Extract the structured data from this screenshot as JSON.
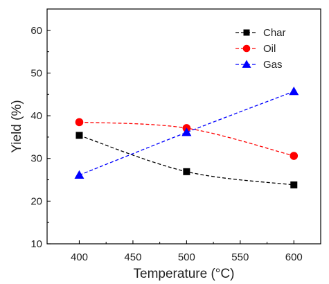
{
  "chart_data": {
    "type": "line",
    "xlabel": "Temperature (°C)",
    "ylabel": "Yield (%)",
    "xlim": [
      370,
      625
    ],
    "ylim": [
      10,
      65
    ],
    "x_ticks": [
      400,
      450,
      500,
      550,
      600
    ],
    "y_ticks": [
      10,
      20,
      30,
      40,
      50,
      60
    ],
    "grid": false,
    "legend_position": "top-right",
    "x": [
      400,
      500,
      600
    ],
    "series": [
      {
        "name": "Char",
        "values": [
          35.4,
          26.9,
          23.8
        ],
        "color": "#000000",
        "marker": "square"
      },
      {
        "name": "Oil",
        "values": [
          38.5,
          37.1,
          30.6
        ],
        "color": "#ff0000",
        "marker": "circle"
      },
      {
        "name": "Gas",
        "values": [
          26.1,
          36.1,
          45.7
        ],
        "color": "#0000ff",
        "marker": "triangle"
      }
    ]
  }
}
